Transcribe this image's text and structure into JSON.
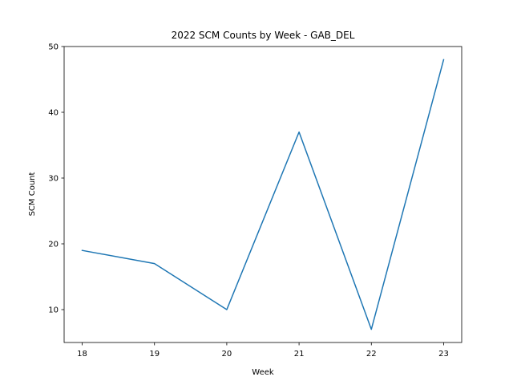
{
  "chart_data": {
    "type": "line",
    "title": "2022 SCM Counts by Week - GAB_DEL",
    "xlabel": "Week",
    "ylabel": "SCM Count",
    "x": [
      18,
      19,
      20,
      21,
      22,
      23
    ],
    "series": [
      {
        "values": [
          19,
          17,
          10,
          37,
          7,
          48
        ],
        "color": "#1f77b4"
      }
    ],
    "xlim": [
      17.75,
      23.25
    ],
    "ylim": [
      5,
      50
    ],
    "xticks": [
      18,
      19,
      20,
      21,
      22,
      23
    ],
    "yticks": [
      10,
      20,
      30,
      40,
      50
    ],
    "grid": false,
    "legend": "none"
  }
}
